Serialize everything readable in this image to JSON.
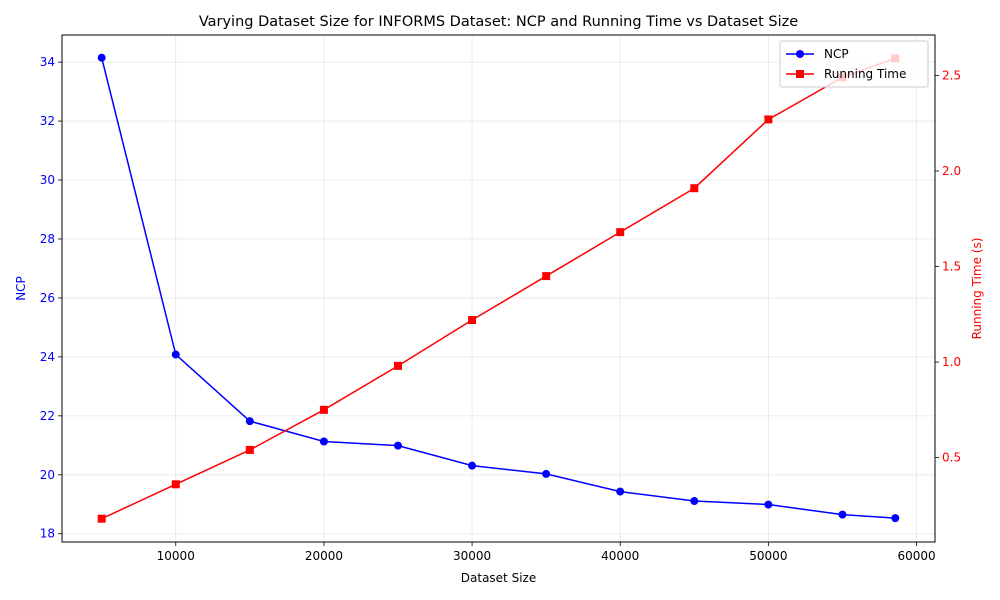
{
  "chart_data": {
    "type": "line",
    "title": "Varying Dataset Size for INFORMS Dataset: NCP and Running Time vs Dataset Size",
    "xlabel": "Dataset Size",
    "ylabel_left": "NCP",
    "ylabel_right": "Running Time (s)",
    "x": [
      5000,
      10000,
      15000,
      20000,
      25000,
      30000,
      35000,
      40000,
      45000,
      50000,
      55000,
      58568
    ],
    "xlim": [
      2321.6,
      61246.4
    ],
    "xticks": [
      10000,
      20000,
      30000,
      40000,
      50000,
      60000
    ],
    "ylim_left": [
      17.72,
      34.92
    ],
    "yticks_left": [
      18,
      20,
      22,
      24,
      26,
      28,
      30,
      32,
      34
    ],
    "ylim_right": [
      0.058,
      2.712
    ],
    "yticks_right": [
      0.5,
      1.0,
      1.5,
      2.0,
      2.5
    ],
    "ytick_labels_right": [
      "0.5",
      "1.0",
      "1.5",
      "2.0",
      "2.5"
    ],
    "grid": true,
    "legend_position": "top-right",
    "series": [
      {
        "name": "NCP",
        "axis": "left",
        "color": "#0000ff",
        "marker": "circle",
        "values": [
          34.15,
          24.08,
          21.82,
          21.13,
          20.99,
          20.31,
          20.03,
          19.43,
          19.11,
          18.99,
          18.65,
          18.53
        ]
      },
      {
        "name": "Running Time",
        "axis": "right",
        "color": "#ff0000",
        "marker": "square",
        "values": [
          0.18,
          0.36,
          0.54,
          0.75,
          0.98,
          1.22,
          1.45,
          1.68,
          1.91,
          2.27,
          2.49,
          2.59
        ]
      }
    ]
  }
}
